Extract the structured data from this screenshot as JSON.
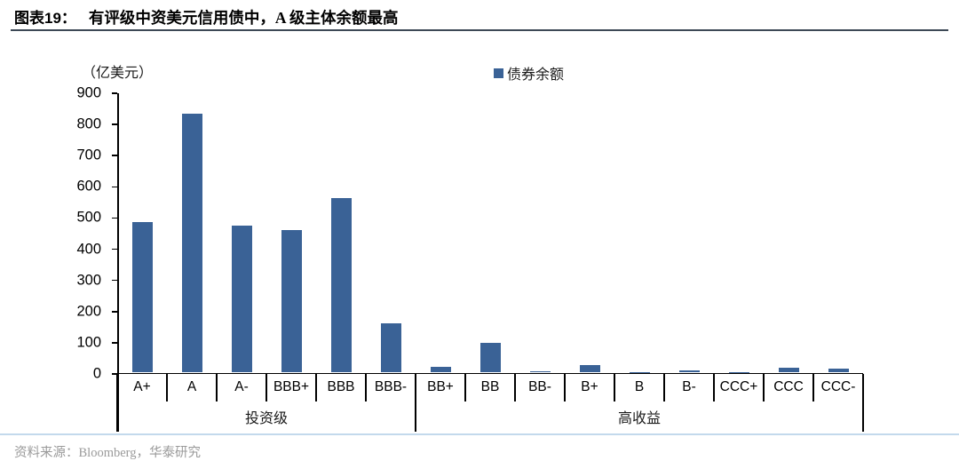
{
  "header": {
    "tag": "图表19：",
    "title": "有评级中资美元信用债中，A 级主体余额最高"
  },
  "chart": {
    "unit_label": "（亿美元）",
    "legend_label": "债券余额",
    "bar_color": "#3a6296"
  },
  "chart_data": {
    "type": "bar",
    "title": "有评级中资美元信用债中，A 级主体余额最高",
    "ylabel": "（亿美元）",
    "legend": [
      "债券余额"
    ],
    "legend_position": "top",
    "grid": false,
    "categories": [
      "A+",
      "A",
      "A-",
      "BBB+",
      "BBB",
      "BBB-",
      "BB+",
      "BB",
      "BB-",
      "B+",
      "B",
      "B-",
      "CCC+",
      "CCC",
      "CCC-"
    ],
    "values": [
      483,
      830,
      470,
      457,
      560,
      158,
      18,
      95,
      4,
      25,
      2,
      8,
      1,
      15,
      12
    ],
    "groups": [
      {
        "label": "投资级",
        "start": 0,
        "end": 5
      },
      {
        "label": "高收益",
        "start": 6,
        "end": 14
      }
    ],
    "ylim": [
      0,
      900
    ],
    "ytick_step": 100
  },
  "footer": {
    "source": "资料来源：Bloomberg，华泰研究"
  }
}
